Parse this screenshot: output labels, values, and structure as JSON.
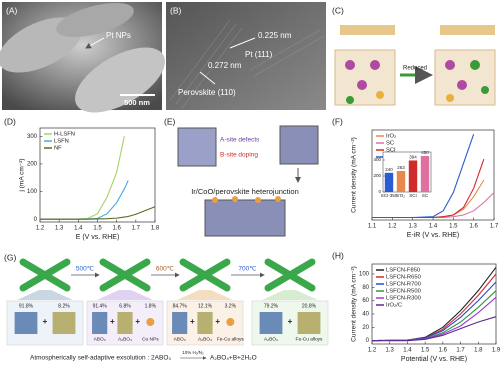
{
  "panels": {
    "a": {
      "label": "(A)",
      "annotation": "Pt NPs",
      "scale_bar": "500 nm"
    },
    "b": {
      "label": "(B)",
      "spacing_1": "0.225 nm",
      "plane_1": "Pt (111)",
      "spacing_2": "0.272 nm",
      "plane_2": "Perovskite (110)"
    },
    "c": {
      "label": "(C)",
      "arrow": "Reduced"
    },
    "d": {
      "label": "(D)"
    },
    "e": {
      "label": "(E)",
      "defects": "A-site defects",
      "doping": "B-site doping",
      "caption": "Ir/CoO/perovskite heterojunction"
    },
    "f": {
      "label": "(F)"
    },
    "g": {
      "label": "(G)",
      "temperatures": [
        "500℃",
        "600℃",
        "700℃"
      ],
      "plus": "+",
      "stages": [
        {
          "items": [
            {
              "fraction": "91.8%"
            },
            {
              "fraction": "8.2%"
            }
          ]
        },
        {
          "items": [
            {
              "fraction": "91.4%",
              "phase": "ABO₃"
            },
            {
              "fraction": "6.8%",
              "phase": "A₂BO₄"
            },
            {
              "fraction": "1.8%",
              "phase": "Cu NPs"
            }
          ]
        },
        {
          "items": [
            {
              "fraction": "84.7%",
              "phase": "ABO₃"
            },
            {
              "fraction": "12.1%",
              "phase": "A₂BO₄"
            },
            {
              "fraction": "3.2%",
              "phase": "Fe-Cu alloys"
            }
          ]
        },
        {
          "items": [
            {
              "fraction": "79.2%",
              "phase": "A₂BO₄"
            },
            {
              "fraction": "20.8%",
              "phase": "Fe-Cu alloys"
            }
          ]
        }
      ],
      "equation_lead": "Atmospherically self-adaptive exsolution : 2ABO₃",
      "condition": "10% H₂/N₂",
      "equation_tail": "A₂BO₄+B+2H₂O"
    },
    "h": {
      "label": "(H)"
    }
  },
  "chart_data": [
    {
      "type": "line",
      "xlabel": "E (V vs. RHE)",
      "ylabel": "j (mA cm⁻²)",
      "legend": "upper left",
      "xlim": [
        1.2,
        1.8
      ],
      "xticks": [
        1.2,
        1.3,
        1.4,
        1.5,
        1.6,
        1.7,
        1.8
      ],
      "ylim": [
        -10,
        330
      ],
      "yticks": [
        0,
        100,
        200,
        300
      ],
      "x": [
        1.2,
        1.3,
        1.4,
        1.45,
        1.5,
        1.55,
        1.6,
        1.64,
        1.66,
        1.7,
        1.8
      ],
      "series": [
        {
          "name": "H-LSFN",
          "color": "#a4d65e",
          "values": [
            0,
            0,
            1,
            3,
            20,
            80,
            170,
            300,
            null,
            null,
            null
          ]
        },
        {
          "name": "LSFN",
          "color": "#4aa8e8",
          "values": [
            0,
            0,
            0,
            1,
            3,
            20,
            60,
            110,
            140,
            null,
            null
          ]
        },
        {
          "name": "NF",
          "color": "#5a6b1e",
          "values": [
            0,
            0,
            0,
            0,
            1,
            2,
            4,
            8,
            10,
            18,
            45
          ]
        }
      ]
    },
    {
      "type": "line",
      "xlabel": "E-iR (V vs. RHE)",
      "ylabel": "Current density (mA cm⁻²)",
      "legend": "upper left",
      "xlim": [
        1.1,
        1.7
      ],
      "xticks": [
        1.1,
        1.2,
        1.3,
        1.4,
        1.5,
        1.6,
        1.7
      ],
      "ylim": [
        -3,
        105
      ],
      "x": [
        1.1,
        1.3,
        1.4,
        1.45,
        1.5,
        1.55,
        1.6,
        1.65,
        1.7
      ],
      "series": [
        {
          "name": "IrO₂",
          "color": "#e8884a",
          "values": [
            0,
            0,
            0,
            1,
            3,
            10,
            25,
            45,
            null
          ]
        },
        {
          "name": "SC",
          "color": "#e070a0",
          "values": [
            0,
            0,
            0,
            0,
            1,
            3,
            8,
            18,
            30
          ]
        },
        {
          "name": "SCI",
          "color": "#d22a2a",
          "values": [
            0,
            0,
            0,
            1,
            3,
            12,
            35,
            70,
            null
          ]
        },
        {
          "name": "SCI-350",
          "color": "#2a5bd2",
          "values": [
            0,
            0,
            1,
            8,
            30,
            65,
            100,
            null,
            null
          ]
        }
      ],
      "inset": {
        "type": "bar",
        "categories": [
          "SCI-350",
          "IrO₂",
          "SCI",
          "SC"
        ],
        "values": [
          240,
          263,
          394,
          450
        ],
        "colors": [
          "#2a5bd2",
          "#e8884a",
          "#d22a2a",
          "#e070a0"
        ],
        "ylim": [
          0,
          500
        ],
        "yticks": [
          0,
          200,
          400
        ]
      }
    },
    {
      "type": "line",
      "xlabel": "Potential (V vs. RHE)",
      "ylabel": "Current density (mA cm⁻²)",
      "legend": "upper left",
      "xlim": [
        1.2,
        1.9
      ],
      "xticks": [
        1.2,
        1.3,
        1.4,
        1.5,
        1.6,
        1.7,
        1.8,
        1.9
      ],
      "ylim": [
        -5,
        115
      ],
      "yticks": [
        0,
        20,
        40,
        60,
        80,
        100
      ],
      "x": [
        1.2,
        1.4,
        1.5,
        1.6,
        1.7,
        1.8,
        1.9
      ],
      "series": [
        {
          "name": "LSFCN-F850",
          "color": "#222222",
          "values": [
            0,
            1,
            5,
            20,
            45,
            75,
            110
          ]
        },
        {
          "name": "LSFCN-R650",
          "color": "#d22a2a",
          "values": [
            0,
            1,
            4,
            17,
            40,
            68,
            100
          ]
        },
        {
          "name": "LSFCN-R700",
          "color": "#2a4bd2",
          "values": [
            0,
            1,
            4,
            15,
            35,
            60,
            88
          ]
        },
        {
          "name": "LSFCN-R500",
          "color": "#2a9a3a",
          "values": [
            0,
            1,
            3,
            12,
            28,
            50,
            75
          ]
        },
        {
          "name": "LSFCN-R300",
          "color": "#9a3ad2",
          "values": [
            0,
            1,
            3,
            10,
            22,
            42,
            65
          ]
        },
        {
          "name": "IrO₂/C",
          "color": "#5a2a8a",
          "values": [
            0,
            0,
            2,
            8,
            18,
            28,
            36
          ]
        }
      ]
    }
  ]
}
